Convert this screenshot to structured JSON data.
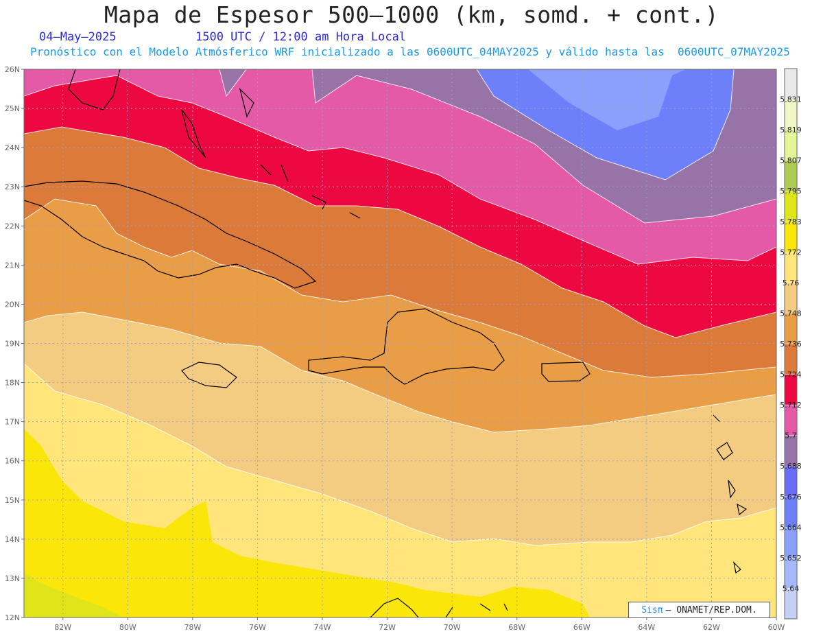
{
  "title": "Mapa de Espesor 500—1000 (km, somd. + cont.)",
  "date": "04—May—2025",
  "time": "1500 UTC / 12:00 am Hora Local",
  "forecast": "Pronóstico con el Modelo Atmósferico WRF inicializado a las 0600UTC_04MAY2025 y válido hasta las  0600UTC_07MAY2025",
  "credit": {
    "brand": "Sisπ",
    "rest": "– ONAMET/REP.DOM."
  },
  "lat_labels": [
    "26N",
    "25N",
    "24N",
    "23N",
    "22N",
    "21N",
    "20N",
    "19N",
    "18N",
    "17N",
    "16N",
    "15N",
    "14N",
    "13N",
    "12N"
  ],
  "lon_labels": [
    "82W",
    "80W",
    "78W",
    "76W",
    "74W",
    "72W",
    "70W",
    "68W",
    "66W",
    "64W",
    "62W",
    "60W"
  ],
  "colorbar": {
    "colors": [
      "#c6d0f5",
      "#a4b8fa",
      "#8aa0fa",
      "#6d80fa",
      "#6a6df6",
      "#9873a8",
      "#e55aa6",
      "#ee0842",
      "#dc7a39",
      "#e89d46",
      "#f3cc82",
      "#ffe57a",
      "#fbe609",
      "#e0e41a",
      "#aecb54",
      "#e3f597",
      "#f0f6c4",
      "#e9e9e9"
    ],
    "labels": [
      "5.64",
      "5.652",
      "5.664",
      "5.676",
      "5.688",
      "5.7",
      "5.712",
      "5.724",
      "5.736",
      "5.748",
      "5.76",
      "5.772",
      "5.783",
      "5.795",
      "5.807",
      "5.819",
      "5.831"
    ]
  },
  "map": {
    "lat_range": [
      12,
      26
    ],
    "lon_range": [
      -83.2,
      -60
    ],
    "thickness_bands": [
      {
        "color": "#e55aa6"
      },
      {
        "color": "#ee0842"
      },
      {
        "color": "#dc7a39"
      },
      {
        "color": "#e89d46"
      },
      {
        "color": "#f3cc82"
      },
      {
        "color": "#ffe57a"
      },
      {
        "color": "#fbe609"
      },
      {
        "color": "#e0e41a"
      }
    ]
  }
}
